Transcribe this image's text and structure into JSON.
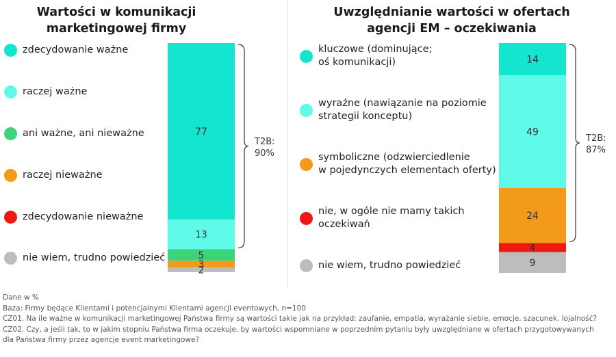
{
  "chart_data": [
    {
      "type": "bar",
      "stacked": true,
      "title": "Wartości w komunikacji marketingowej firmy",
      "title_lines": [
        "Wartości w komunikacji",
        "marketingowej firmy"
      ],
      "series": [
        {
          "name": "zdecydowanie ważne",
          "values": [
            77
          ],
          "color": "#14e5cf"
        },
        {
          "name": "raczej ważne",
          "values": [
            13
          ],
          "color": "#5ffae8"
        },
        {
          "name": "ani ważne, ani nieważne",
          "values": [
            5
          ],
          "color": "#3dd37a"
        },
        {
          "name": "raczej nieważne",
          "values": [
            3
          ],
          "color": "#f39a1b"
        },
        {
          "name": "zdecydowanie nieważne",
          "values": [
            0
          ],
          "color": "#ee1a12"
        },
        {
          "name": "nie wiem, trudno powiedzieć",
          "values": [
            2
          ],
          "color": "#bdbdbd"
        }
      ],
      "bar_labels": [
        "77",
        "13",
        "5",
        "3",
        "2"
      ],
      "ylim": [
        0,
        100
      ],
      "legend_position": "left",
      "annotation": {
        "lines": [
          "T2B:",
          "90%"
        ],
        "value": 90
      }
    },
    {
      "type": "bar",
      "stacked": true,
      "title": "Uwzględnianie wartości w ofertach agencji EM – oczekiwania",
      "title_lines": [
        "Uwzględnianie wartości w ofertach",
        "agencji EM – oczekiwania"
      ],
      "series": [
        {
          "name": "kluczowe (dominujące;\noś komunikacji)",
          "values": [
            14
          ],
          "color": "#14e5cf"
        },
        {
          "name": "wyraźne (nawiązanie na poziomie\nstrategii konceptu)",
          "values": [
            49
          ],
          "color": "#5ffae8"
        },
        {
          "name": "symboliczne (odzwierciedlenie\nw pojedynczych elementach oferty)",
          "values": [
            24
          ],
          "color": "#f39a1b"
        },
        {
          "name": "nie, w ogóle nie mamy takich\noczekiwań",
          "values": [
            4
          ],
          "color": "#ee1a12"
        },
        {
          "name": "nie wiem, trudno powiedzieć",
          "values": [
            9
          ],
          "color": "#bdbdbd"
        }
      ],
      "bar_labels": [
        "14",
        "49",
        "24",
        "4",
        "9"
      ],
      "ylim": [
        0,
        100
      ],
      "legend_position": "left",
      "annotation": {
        "lines": [
          "T2B:",
          "87%"
        ],
        "value": 87
      }
    }
  ],
  "footer": {
    "line1": "Dane w %",
    "line2": "Baza: Firmy będące Klientami i potencjalnymi Klientami agencji eventowych, n=100",
    "line3": "CZ01. Na ile ważne w komunikacji marketingowej Państwa firmy są wartości takie jak na przykład: zaufanie, empatia, wyrażanie siebie, emocje, szacunek, lojalność?",
    "line4": "CZ02. Czy, a jeśli tak, to w jakim stopniu Państwa firma oczekuje, by wartości wspomniane w poprzednim pytaniu były uwzględniane w ofertach przygotowywanych",
    "line5": "dla Państwa firmy przez agencje event marketingowe?"
  }
}
